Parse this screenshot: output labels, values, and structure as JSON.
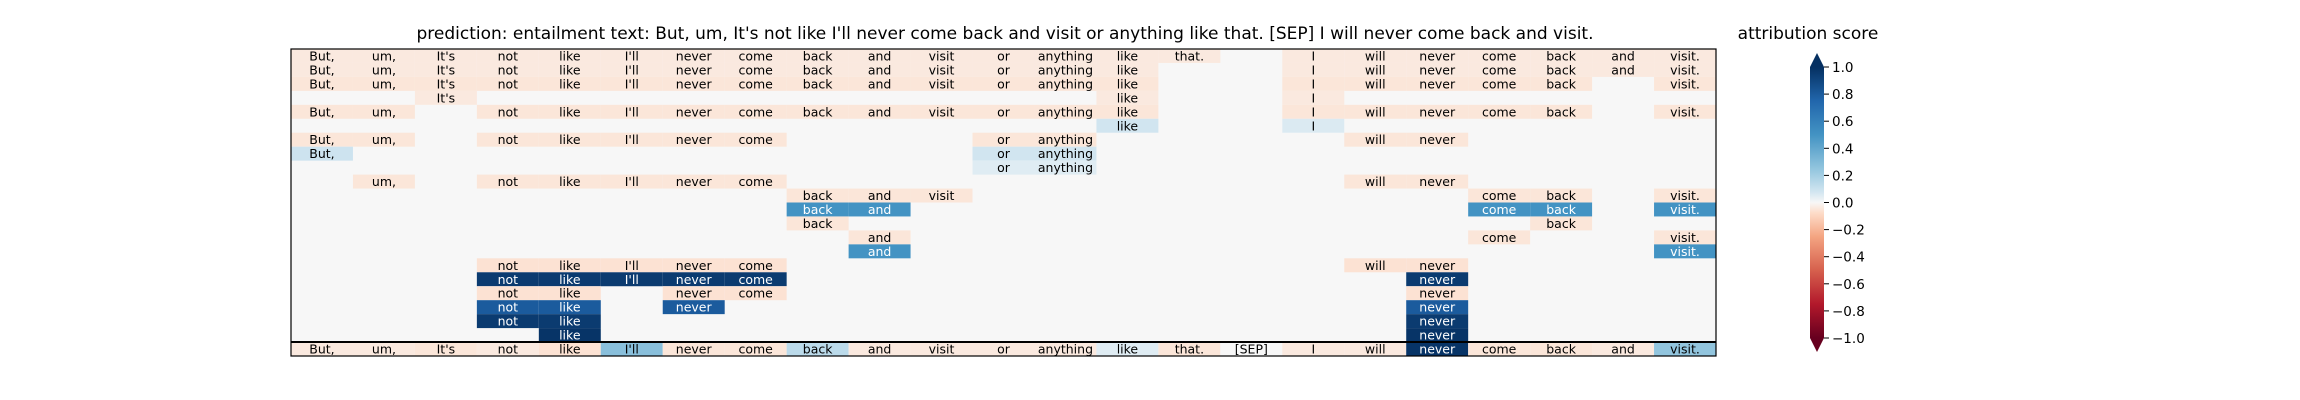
{
  "chart_data": {
    "type": "heatmap",
    "title": "prediction:  entailment     text:  But, um, It's not like I'll never come back and visit or anything like that. [SEP] I will never come back and visit.",
    "colorbar": {
      "label": "attribution score",
      "range": [
        -1.0,
        1.0
      ],
      "extend": "both",
      "colormap": "RdBu",
      "ticks": [
        "1.0",
        "0.8",
        "0.6",
        "0.4",
        "0.2",
        "0.0",
        "−0.2",
        "−0.4",
        "−0.6",
        "−0.8",
        "−1.0"
      ]
    },
    "tokens": [
      "But,",
      "um,",
      "It's",
      "not",
      "like",
      "I'll",
      "never",
      "come",
      "back",
      "and",
      "visit",
      "or",
      "anything",
      "like",
      "that.",
      "[SEP]",
      "I",
      "will",
      "never",
      "come",
      "back",
      "and",
      "visit."
    ],
    "rows": [
      {
        "cells": [
          [
            0,
            -0.04
          ],
          [
            1,
            -0.04
          ],
          [
            2,
            -0.04
          ],
          [
            3,
            -0.04
          ],
          [
            4,
            -0.04
          ],
          [
            5,
            -0.04
          ],
          [
            6,
            -0.04
          ],
          [
            7,
            -0.04
          ],
          [
            8,
            -0.04
          ],
          [
            9,
            -0.04
          ],
          [
            10,
            -0.04
          ],
          [
            11,
            -0.04
          ],
          [
            12,
            -0.04
          ],
          [
            13,
            -0.04
          ],
          [
            14,
            -0.04
          ],
          [
            16,
            -0.04
          ],
          [
            17,
            -0.04
          ],
          [
            18,
            -0.04
          ],
          [
            19,
            -0.04
          ],
          [
            20,
            -0.04
          ],
          [
            21,
            -0.04
          ],
          [
            22,
            -0.04
          ]
        ]
      },
      {
        "cells": [
          [
            0,
            -0.04
          ],
          [
            1,
            -0.04
          ],
          [
            2,
            -0.04
          ],
          [
            3,
            -0.04
          ],
          [
            4,
            -0.04
          ],
          [
            5,
            -0.04
          ],
          [
            6,
            -0.04
          ],
          [
            7,
            -0.04
          ],
          [
            8,
            -0.04
          ],
          [
            9,
            -0.04
          ],
          [
            10,
            -0.04
          ],
          [
            11,
            -0.04
          ],
          [
            12,
            -0.04
          ],
          [
            13,
            -0.04
          ],
          [
            16,
            -0.04
          ],
          [
            17,
            -0.04
          ],
          [
            18,
            -0.04
          ],
          [
            19,
            -0.04
          ],
          [
            20,
            -0.04
          ],
          [
            21,
            -0.04
          ],
          [
            22,
            -0.04
          ]
        ]
      },
      {
        "cells": [
          [
            0,
            -0.05
          ],
          [
            1,
            -0.05
          ],
          [
            2,
            -0.05
          ],
          [
            3,
            -0.05
          ],
          [
            4,
            -0.05
          ],
          [
            5,
            -0.05
          ],
          [
            6,
            -0.05
          ],
          [
            7,
            -0.05
          ],
          [
            8,
            -0.05
          ],
          [
            9,
            -0.05
          ],
          [
            10,
            -0.05
          ],
          [
            11,
            -0.05
          ],
          [
            12,
            -0.05
          ],
          [
            13,
            -0.05
          ],
          [
            16,
            -0.05
          ],
          [
            17,
            -0.05
          ],
          [
            18,
            -0.05
          ],
          [
            19,
            -0.05
          ],
          [
            20,
            -0.05
          ],
          [
            22,
            -0.05
          ]
        ]
      },
      {
        "cells": [
          [
            2,
            -0.04
          ],
          [
            13,
            -0.04
          ],
          [
            16,
            -0.04
          ]
        ]
      },
      {
        "cells": [
          [
            0,
            -0.05
          ],
          [
            1,
            -0.05
          ],
          [
            3,
            -0.05
          ],
          [
            4,
            -0.05
          ],
          [
            5,
            -0.05
          ],
          [
            6,
            -0.05
          ],
          [
            7,
            -0.05
          ],
          [
            8,
            -0.05
          ],
          [
            9,
            -0.05
          ],
          [
            10,
            -0.05
          ],
          [
            11,
            -0.05
          ],
          [
            12,
            -0.05
          ],
          [
            13,
            -0.05
          ],
          [
            16,
            -0.05
          ],
          [
            17,
            -0.05
          ],
          [
            18,
            -0.05
          ],
          [
            19,
            -0.05
          ],
          [
            20,
            -0.05
          ],
          [
            22,
            -0.05
          ]
        ]
      },
      {
        "cells": [
          [
            13,
            0.08
          ],
          [
            16,
            0.06
          ]
        ]
      },
      {
        "cells": [
          [
            0,
            -0.05
          ],
          [
            1,
            -0.05
          ],
          [
            3,
            -0.05
          ],
          [
            4,
            -0.05
          ],
          [
            5,
            -0.05
          ],
          [
            6,
            -0.05
          ],
          [
            7,
            -0.05
          ],
          [
            11,
            -0.05
          ],
          [
            12,
            -0.05
          ],
          [
            17,
            -0.05
          ],
          [
            18,
            -0.05
          ]
        ]
      },
      {
        "cells": [
          [
            0,
            0.09
          ],
          [
            11,
            0.08
          ],
          [
            12,
            0.08
          ]
        ]
      },
      {
        "cells": [
          [
            11,
            0.05
          ],
          [
            12,
            0.05
          ]
        ]
      },
      {
        "cells": [
          [
            1,
            -0.05
          ],
          [
            3,
            -0.05
          ],
          [
            4,
            -0.05
          ],
          [
            5,
            -0.05
          ],
          [
            6,
            -0.05
          ],
          [
            7,
            -0.05
          ],
          [
            17,
            -0.05
          ],
          [
            18,
            -0.05
          ]
        ]
      },
      {
        "cells": [
          [
            8,
            -0.05
          ],
          [
            9,
            -0.05
          ],
          [
            10,
            -0.05
          ],
          [
            19,
            -0.05
          ],
          [
            20,
            -0.05
          ],
          [
            22,
            -0.05
          ]
        ]
      },
      {
        "cells": [
          [
            8,
            0.5
          ],
          [
            9,
            0.5
          ],
          [
            19,
            0.5
          ],
          [
            20,
            0.5
          ],
          [
            22,
            0.5
          ]
        ]
      },
      {
        "cells": [
          [
            8,
            -0.05
          ],
          [
            20,
            -0.05
          ]
        ]
      },
      {
        "cells": [
          [
            9,
            -0.05
          ],
          [
            19,
            -0.05
          ],
          [
            22,
            -0.05
          ]
        ]
      },
      {
        "cells": [
          [
            9,
            0.5
          ],
          [
            22,
            0.5
          ]
        ]
      },
      {
        "cells": [
          [
            3,
            -0.06
          ],
          [
            4,
            -0.06
          ],
          [
            5,
            -0.06
          ],
          [
            6,
            -0.06
          ],
          [
            7,
            -0.06
          ],
          [
            17,
            -0.06
          ],
          [
            18,
            -0.06
          ]
        ]
      },
      {
        "cells": [
          [
            3,
            0.95
          ],
          [
            4,
            0.95
          ],
          [
            5,
            0.95
          ],
          [
            6,
            0.95
          ],
          [
            7,
            0.95
          ],
          [
            18,
            0.95
          ]
        ]
      },
      {
        "cells": [
          [
            3,
            -0.06
          ],
          [
            4,
            -0.06
          ],
          [
            6,
            -0.06
          ],
          [
            7,
            -0.06
          ],
          [
            18,
            -0.06
          ]
        ]
      },
      {
        "cells": [
          [
            3,
            0.8
          ],
          [
            4,
            0.8
          ],
          [
            6,
            0.8
          ],
          [
            18,
            0.8
          ]
        ]
      },
      {
        "cells": [
          [
            3,
            0.95
          ],
          [
            4,
            0.95
          ],
          [
            18,
            0.95
          ]
        ]
      },
      {
        "cells": [
          [
            4,
            0.98
          ],
          [
            18,
            0.98
          ]
        ]
      },
      {
        "cells": [
          [
            0,
            -0.04
          ],
          [
            1,
            -0.04
          ],
          [
            2,
            -0.05
          ],
          [
            3,
            -0.04
          ],
          [
            4,
            -0.06
          ],
          [
            5,
            0.28
          ],
          [
            6,
            -0.05
          ],
          [
            7,
            -0.05
          ],
          [
            8,
            0.14
          ],
          [
            9,
            -0.04
          ],
          [
            10,
            -0.04
          ],
          [
            11,
            -0.04
          ],
          [
            12,
            -0.04
          ],
          [
            13,
            0.05
          ],
          [
            14,
            -0.05
          ],
          [
            15,
            0.0
          ],
          [
            16,
            -0.04
          ],
          [
            17,
            -0.04
          ],
          [
            18,
            0.98
          ],
          [
            19,
            -0.05
          ],
          [
            20,
            -0.05
          ],
          [
            21,
            -0.04
          ],
          [
            22,
            0.25
          ]
        ]
      }
    ]
  }
}
